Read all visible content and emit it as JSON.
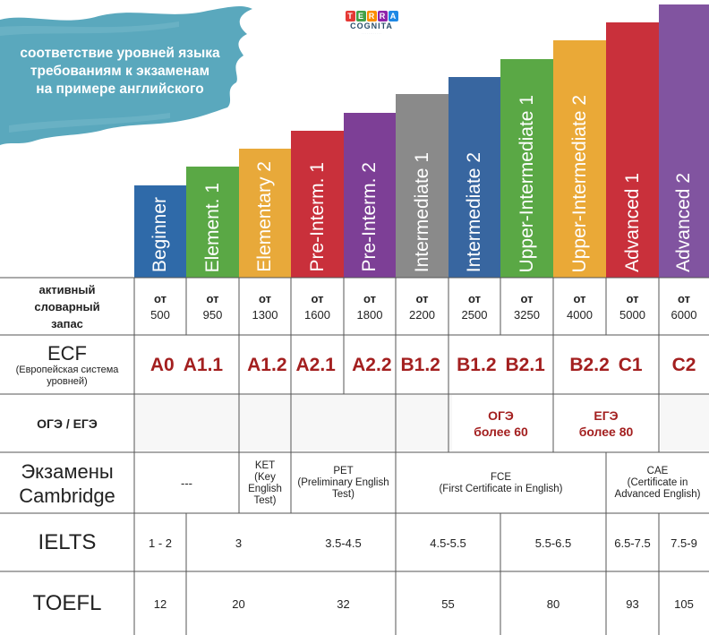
{
  "header": {
    "title_lines": [
      "соответствие уровней языка",
      "требованиям к экзаменам",
      "на примере английского"
    ],
    "brush_color": "#5aa8bd"
  },
  "logo": {
    "top_letters": [
      "T",
      "E",
      "R",
      "R",
      "A"
    ],
    "top_colors": [
      "#e53935",
      "#43a047",
      "#fb8c00",
      "#8e24aa",
      "#1e88e5"
    ],
    "bottom": "COGNITA"
  },
  "levels": [
    {
      "name": "Beginner",
      "color": "#2f6aa9"
    },
    {
      "name": "Element. 1",
      "color": "#5aa845"
    },
    {
      "name": "Elementary 2",
      "color": "#e8a93a"
    },
    {
      "name": "Pre-Interm. 1",
      "color": "#c9303b"
    },
    {
      "name": "Pre-Interm. 2",
      "color": "#7d3f96"
    },
    {
      "name": "Intermediate 1",
      "color": "#8a8a8a"
    },
    {
      "name": "Intermediate 2",
      "color": "#3866a0"
    },
    {
      "name": "Upper-Intermediate 1",
      "color": "#5aa845"
    },
    {
      "name": "Upper-Intermediate 2",
      "color": "#eaa937"
    },
    {
      "name": "Advanced 1",
      "color": "#c9303b"
    },
    {
      "name": "Advanced 2",
      "color": "#8154a0"
    }
  ],
  "vocab": {
    "header_lines": [
      "активный",
      "словарный",
      "запас"
    ],
    "prefix": "от",
    "values": [
      "500",
      "950",
      "1300",
      "1600",
      "1800",
      "2200",
      "2500",
      "3250",
      "4000",
      "5000",
      "6000"
    ]
  },
  "ecf": {
    "title": "ECF",
    "subtitle_lines": [
      "(Европейская система",
      "уровней)"
    ],
    "codes": [
      "A0",
      "A1.1",
      "A1.2",
      "A2.1",
      "A2.2",
      "B1.2",
      "B1.2",
      "B2.1",
      "B2.2",
      "C1",
      "C2"
    ]
  },
  "oge": {
    "title": "ОГЭ / ЕГЭ",
    "oge_label": "ОГЭ",
    "oge_sub": "более 60",
    "ege_label": "ЕГЭ",
    "ege_sub": "более 80"
  },
  "cambridge": {
    "title_lines": [
      "Экзамены",
      "Cambridge"
    ],
    "cells": [
      {
        "lines": [
          "---"
        ]
      },
      {
        "lines": [
          "KET",
          "(Key",
          "English",
          "Test)"
        ]
      },
      {
        "lines": [
          "PET",
          "(Preliminary English",
          "Test)"
        ]
      },
      {
        "lines": [
          "FCE",
          "(First Certificate in English)"
        ]
      },
      {
        "lines": [
          "CAE",
          "(Certificate in",
          "Advanced English)"
        ]
      }
    ]
  },
  "ielts": {
    "title": "IELTS",
    "values": [
      "1 - 2",
      "3",
      "3.5-4.5",
      "4.5-5.5",
      "5.5-6.5",
      "6.5-7.5",
      "7.5-9"
    ]
  },
  "toefl": {
    "title": "TOEFL",
    "values": [
      "12",
      "20",
      "32",
      "55",
      "80",
      "93",
      "105"
    ]
  },
  "chart_data": {
    "type": "bar",
    "title": "соответствие уровней языка требованиям к экзаменам на примере английского",
    "categories": [
      "Beginner",
      "Element. 1",
      "Elementary 2",
      "Pre-Interm. 1",
      "Pre-Interm. 2",
      "Intermediate 1",
      "Intermediate 2",
      "Upper-Intermediate 1",
      "Upper-Intermediate 2",
      "Advanced 1",
      "Advanced 2"
    ],
    "values": [
      500,
      950,
      1300,
      1600,
      1800,
      2200,
      2500,
      3250,
      4000,
      5000,
      6000
    ],
    "xlabel": "",
    "ylabel": "",
    "grid": false
  }
}
